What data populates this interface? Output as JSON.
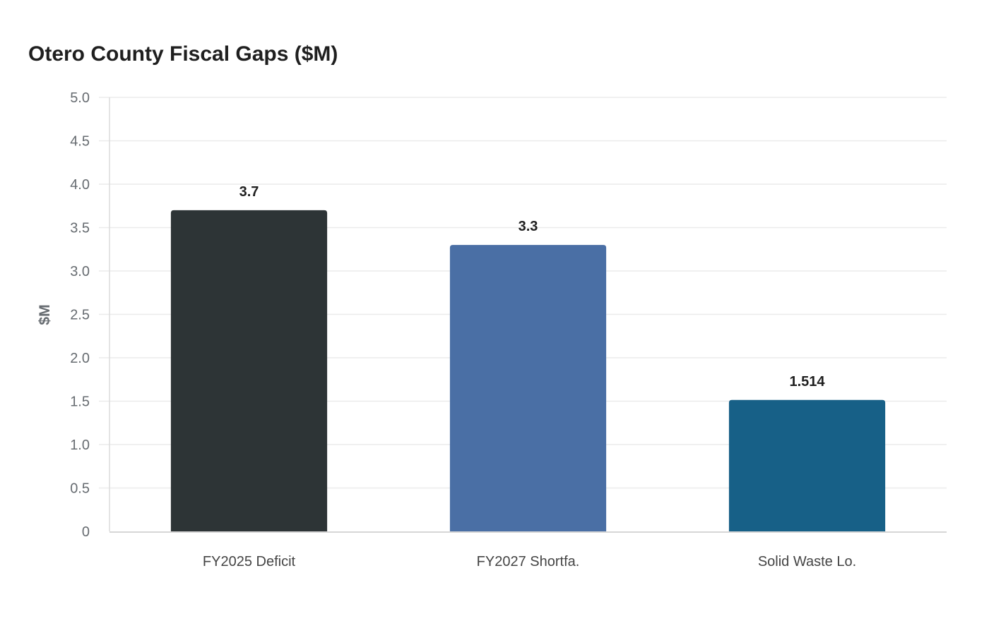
{
  "chart_data": {
    "type": "bar",
    "title": "Otero County Fiscal Gaps ($M)",
    "xlabel": "",
    "ylabel": "$M",
    "categories": [
      "FY2025 Deficit",
      "FY2027 Shortfa.",
      "Solid Waste Lo."
    ],
    "values": [
      3.7,
      3.3,
      1.514
    ],
    "value_labels": [
      "3.7",
      "3.3",
      "1.514"
    ],
    "colors": [
      "#2d3436",
      "#4a6fa5",
      "#176087"
    ],
    "ylim": [
      0,
      5
    ],
    "yticks": [
      "0",
      "0.5",
      "1.0",
      "1.5",
      "2.0",
      "2.5",
      "3.0",
      "3.5",
      "4.0",
      "4.5",
      "5.0"
    ],
    "grid": true,
    "legend": "none"
  }
}
